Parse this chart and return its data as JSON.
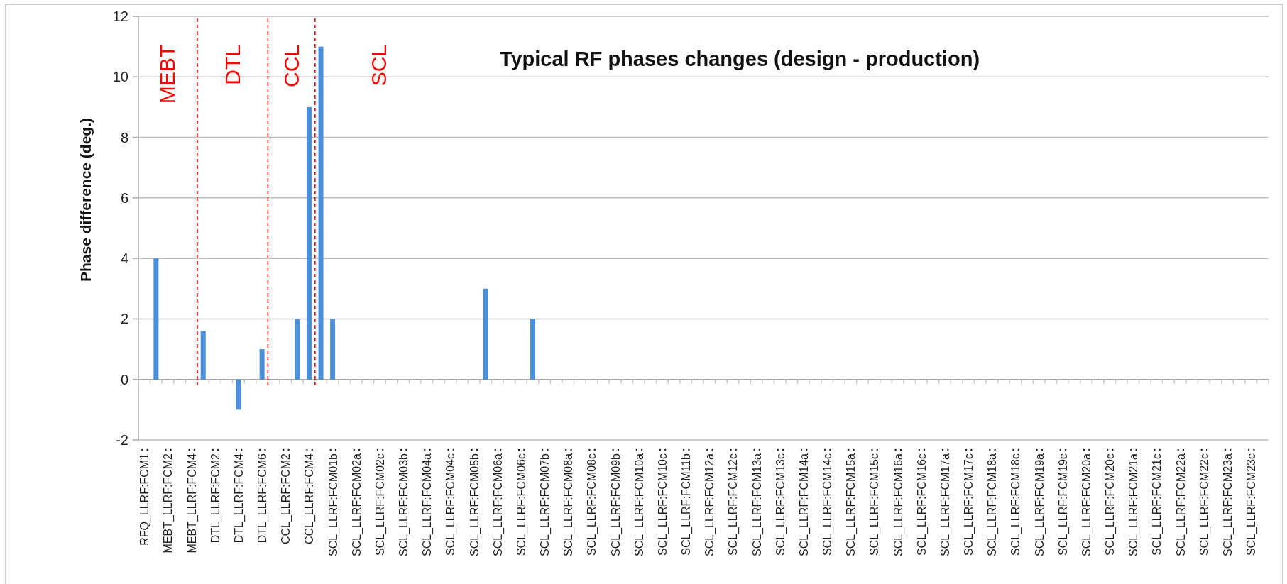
{
  "chart_data": {
    "type": "bar",
    "title": "Typical RF phases changes (design - production)",
    "ylabel": "Phase difference (deg.)",
    "categories": [
      "RFQ_LLRF:FCM1",
      null,
      "MEBT_LLRF:FCM2",
      null,
      "MEBT_LLRF:FCM4",
      null,
      "DTL_LLRF:FCM2",
      null,
      "DTL_LLRF:FCM4",
      null,
      "DTL_LLRF:FCM6",
      null,
      "CCL_LLRF:FCM2",
      null,
      "CCL_LLRF:FCM4",
      null,
      "SCL_LLRF:FCM01b",
      null,
      "SCL_LLRF:FCM02a",
      null,
      "SCL_LLRF:FCM02c",
      null,
      "SCL_LLRF:FCM03b",
      null,
      "SCL_LLRF:FCM04a",
      null,
      "SCL_LLRF:FCM04c",
      null,
      "SCL_LLRF:FCM05b",
      null,
      "SCL_LLRF:FCM06a",
      null,
      "SCL_LLRF:FCM06c",
      null,
      "SCL_LLRF:FCM07b",
      null,
      "SCL_LLRF:FCM08a",
      null,
      "SCL_LLRF:FCM08c",
      null,
      "SCL_LLRF:FCM09b",
      null,
      "SCL_LLRF:FCM10a",
      null,
      "SCL_LLRF:FCM10c",
      null,
      "SCL_LLRF:FCM11b",
      null,
      "SCL_LLRF:FCM12a",
      null,
      "SCL_LLRF:FCM12c",
      null,
      "SCL_LLRF:FCM13a",
      null,
      "SCL_LLRF:FCM13c",
      null,
      "SCL_LLRF:FCM14a",
      null,
      "SCL_LLRF:FCM14c",
      null,
      "SCL_LLRF:FCM15a",
      null,
      "SCL_LLRF:FCM15c",
      null,
      "SCL_LLRF:FCM16a",
      null,
      "SCL_LLRF:FCM16c",
      null,
      "SCL_LLRF:FCM17a",
      null,
      "SCL_LLRF:FCM17c",
      null,
      "SCL_LLRF:FCM18a",
      null,
      "SCL_LLRF:FCM18c",
      null,
      "SCL_LLRF:FCM19a",
      null,
      "SCL_LLRF:FCM19c",
      null,
      "SCL_LLRF:FCM20a",
      null,
      "SCL_LLRF:FCM20c",
      null,
      "SCL_LLRF:FCM21a",
      null,
      "SCL_LLRF:FCM21c",
      null,
      "SCL_LLRF:FCM22a",
      null,
      "SCL_LLRF:FCM22c",
      null,
      "SCL_LLRF:FCM23a",
      null,
      "SCL_LLRF:FCM23c",
      null
    ],
    "values": [
      0,
      4,
      0,
      0,
      0,
      1.6,
      0,
      0,
      -1,
      0,
      1,
      0,
      0,
      2,
      9,
      11,
      2,
      0,
      0,
      0,
      0,
      0,
      0,
      0,
      0,
      0,
      0,
      0,
      0,
      3,
      0,
      0,
      0,
      2,
      0,
      0,
      0,
      0,
      0,
      0,
      0,
      0,
      0,
      0,
      0,
      0,
      0,
      0,
      0,
      0,
      0,
      0,
      0,
      0,
      0,
      0,
      0,
      0,
      0,
      0,
      0,
      0,
      0,
      0,
      0,
      0,
      0,
      0,
      0,
      0,
      0,
      0,
      0,
      0,
      0,
      0,
      0,
      0,
      0,
      0,
      0,
      0,
      0,
      0,
      0,
      0,
      0,
      0,
      0,
      0,
      0,
      0,
      0,
      0,
      0,
      0
    ],
    "color": "#4a8fd9",
    "ylim": [
      -2,
      12
    ],
    "yticks": [
      -2,
      0,
      2,
      4,
      6,
      8,
      10,
      12
    ],
    "grid": "y",
    "annotations": [
      "MEBT",
      "DTL",
      "CCL",
      "SCL"
    ]
  }
}
